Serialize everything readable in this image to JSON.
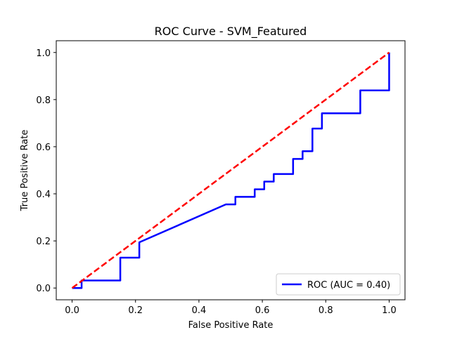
{
  "chart_data": {
    "type": "line",
    "title": "ROC Curve - SVM_Featured",
    "xlabel": "False Positive Rate",
    "ylabel": "True Positive Rate",
    "xlim": [
      -0.05,
      1.05
    ],
    "ylim": [
      -0.05,
      1.05
    ],
    "xticks": [
      0.0,
      0.2,
      0.4,
      0.6,
      0.8,
      1.0
    ],
    "yticks": [
      0.0,
      0.2,
      0.4,
      0.6,
      0.8,
      1.0
    ],
    "xtick_labels": [
      "0.0",
      "0.2",
      "0.4",
      "0.6",
      "0.8",
      "1.0"
    ],
    "ytick_labels": [
      "0.0",
      "0.2",
      "0.4",
      "0.6",
      "0.8",
      "1.0"
    ],
    "grid": false,
    "legend_position": "lower right",
    "series": [
      {
        "name": "ROC (AUC = 0.40)",
        "color": "#0000ff",
        "style": "solid",
        "x": [
          0.0,
          0.03,
          0.03,
          0.152,
          0.152,
          0.212,
          0.212,
          0.485,
          0.515,
          0.515,
          0.576,
          0.576,
          0.606,
          0.606,
          0.636,
          0.636,
          0.697,
          0.697,
          0.727,
          0.727,
          0.758,
          0.758,
          0.788,
          0.788,
          0.909,
          0.909,
          1.0,
          1.0
        ],
        "y": [
          0.0,
          0.0,
          0.032,
          0.032,
          0.129,
          0.129,
          0.194,
          0.355,
          0.355,
          0.387,
          0.387,
          0.419,
          0.419,
          0.452,
          0.452,
          0.484,
          0.484,
          0.548,
          0.548,
          0.581,
          0.581,
          0.677,
          0.677,
          0.742,
          0.742,
          0.839,
          0.839,
          1.0
        ]
      },
      {
        "color": "#ff0000",
        "style": "dashed",
        "x": [
          0.0,
          1.0
        ],
        "y": [
          0.0,
          1.0
        ]
      }
    ]
  }
}
